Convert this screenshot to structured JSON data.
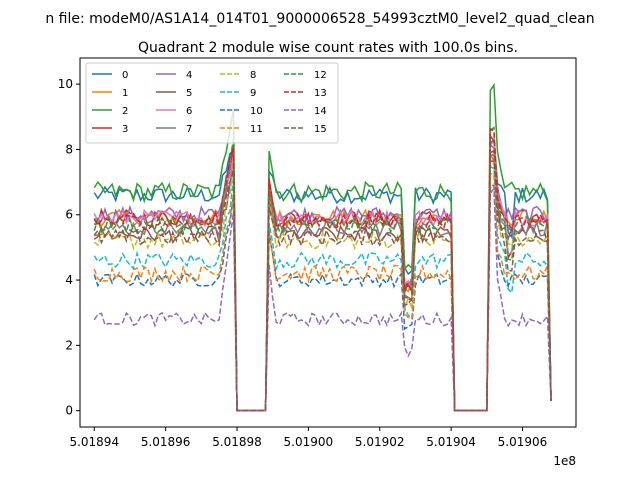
{
  "chart_data": {
    "type": "line",
    "suptitle": "n file: modeM0/AS1A14_014T01_9000006528_54993cztM0_level2_quad_clean",
    "title": "Quadrant 2 module wise count rates with 100.0s bins.",
    "xlabel": "",
    "ylabel": "",
    "x_offset_label": "1e8",
    "xlim": [
      501893600,
      501907500
    ],
    "ylim": [
      -0.5,
      10.8
    ],
    "xticks": [
      501894000,
      501896000,
      501898000,
      501900000,
      501902000,
      501904000,
      501906000
    ],
    "xtick_labels": [
      "5.01894",
      "5.01896",
      "5.01898",
      "5.01900",
      "5.01902",
      "5.01904",
      "5.01906"
    ],
    "yticks": [
      0,
      2,
      4,
      6,
      8,
      10
    ],
    "ytick_labels": [
      "0",
      "2",
      "4",
      "6",
      "8",
      "10"
    ],
    "bin_seconds": 100,
    "x_start": 501894000,
    "x_end": 501906800,
    "gaps": [
      [
        501898000,
        501898800
      ],
      [
        501904100,
        501905000
      ]
    ],
    "legend_position": "upper left",
    "series": [
      {
        "name": "0",
        "color": "#1f77b4",
        "dash": "solid",
        "baseline": 6.6,
        "noise": 0.25,
        "peak": 8.5
      },
      {
        "name": "1",
        "color": "#ff7f0e",
        "dash": "solid",
        "baseline": 5.9,
        "noise": 0.25,
        "peak": 8.0
      },
      {
        "name": "2",
        "color": "#2ca02c",
        "dash": "solid",
        "baseline": 6.7,
        "noise": 0.3,
        "peak": 10.2
      },
      {
        "name": "3",
        "color": "#d62728",
        "dash": "solid",
        "baseline": 5.9,
        "noise": 0.25,
        "peak": 8.6
      },
      {
        "name": "4",
        "color": "#9467bd",
        "dash": "solid",
        "baseline": 6.0,
        "noise": 0.25,
        "peak": 8.2
      },
      {
        "name": "5",
        "color": "#8c564b",
        "dash": "solid",
        "baseline": 5.4,
        "noise": 0.25,
        "peak": 7.8
      },
      {
        "name": "6",
        "color": "#e377c2",
        "dash": "solid",
        "baseline": 5.9,
        "noise": 0.25,
        "peak": 8.3
      },
      {
        "name": "7",
        "color": "#7f7f7f",
        "dash": "solid",
        "baseline": 5.6,
        "noise": 0.25,
        "peak": 8.0
      },
      {
        "name": "8",
        "color": "#bcbd22",
        "dash": "dashed",
        "baseline": 5.2,
        "noise": 0.25,
        "peak": 7.8
      },
      {
        "name": "9",
        "color": "#17becf",
        "dash": "dashed",
        "baseline": 4.6,
        "noise": 0.25,
        "peak": 7.5
      },
      {
        "name": "10",
        "color": "#1f77b4",
        "dash": "dashed",
        "baseline": 4.0,
        "noise": 0.2,
        "peak": 7.2
      },
      {
        "name": "11",
        "color": "#ff7f0e",
        "dash": "dashed",
        "baseline": 4.2,
        "noise": 0.25,
        "peak": 7.4
      },
      {
        "name": "12",
        "color": "#2ca02c",
        "dash": "dashed",
        "baseline": 5.7,
        "noise": 0.25,
        "peak": 8.8
      },
      {
        "name": "13",
        "color": "#d62728",
        "dash": "dashed",
        "baseline": 5.8,
        "noise": 0.25,
        "peak": 8.9
      },
      {
        "name": "14",
        "color": "#9467bd",
        "dash": "dashed",
        "baseline": 2.8,
        "noise": 0.2,
        "peak": 6.8
      },
      {
        "name": "15",
        "color": "#8c564b",
        "dash": "dashed",
        "baseline": 5.3,
        "noise": 0.25,
        "peak": 8.1
      }
    ]
  }
}
